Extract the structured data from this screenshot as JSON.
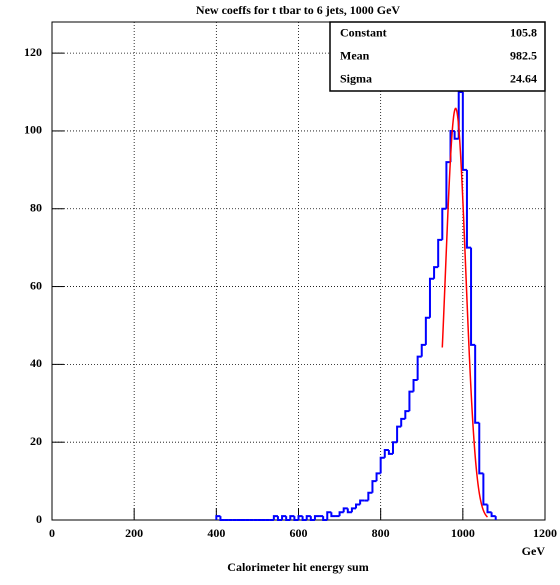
{
  "chart_data": {
    "type": "histogram",
    "title": "New coeffs for t tbar to 6 jets, 1000 GeV",
    "x_label": "Calorimeter hit energy sum",
    "x_unit": "GeV",
    "bins": [
      400,
      410,
      420,
      430,
      440,
      450,
      460,
      470,
      480,
      490,
      500,
      510,
      520,
      530,
      540,
      550,
      560,
      570,
      580,
      590,
      600,
      610,
      620,
      630,
      640,
      650,
      660,
      670,
      680,
      690,
      700,
      710,
      720,
      730,
      740,
      750,
      760,
      770,
      780,
      790,
      800,
      810,
      820,
      830,
      840,
      850,
      860,
      870,
      880,
      890,
      900,
      910,
      920,
      930,
      940,
      950,
      960,
      970,
      980,
      990,
      1000,
      1010,
      1020,
      1030,
      1040,
      1050,
      1060,
      1070,
      1080
    ],
    "values": [
      1,
      0,
      0,
      0,
      0,
      0,
      0,
      0,
      0,
      0,
      0,
      0,
      0,
      0,
      1,
      0,
      1,
      0,
      1,
      0,
      1,
      0,
      1,
      0,
      1,
      1,
      0,
      2,
      1,
      1,
      2,
      3,
      2,
      3,
      4,
      5,
      5,
      7,
      10,
      12,
      16,
      18,
      17,
      20,
      24,
      26,
      28,
      33,
      36,
      42,
      45,
      52,
      62,
      65,
      72,
      80,
      92,
      100,
      98,
      110,
      90,
      70,
      45,
      25,
      12,
      4,
      2,
      1
    ],
    "color": "#0000ff",
    "fit": {
      "color": "#ff0000",
      "constant": 105.8,
      "mean": 982.5,
      "sigma": 24.64,
      "range": [
        950,
        1060
      ]
    },
    "stats": {
      "labels": [
        "Constant",
        "Mean",
        "Sigma"
      ]
    },
    "xlim": [
      0,
      1200
    ],
    "xticks": [
      0,
      200,
      400,
      600,
      800,
      1000,
      1200
    ],
    "ylim": [
      0,
      128
    ],
    "yticks": [
      0,
      20,
      40,
      60,
      80,
      100,
      120
    ],
    "grid": true
  }
}
